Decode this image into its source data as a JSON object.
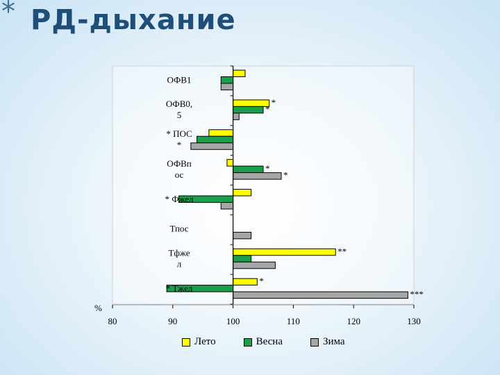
{
  "slide": {
    "marker": "*",
    "title": "РД-дыхание"
  },
  "chart_data": {
    "type": "bar",
    "orientation": "horizontal",
    "categories": [
      "ОФВ1",
      "ОФВ0,\n5",
      "* ПОС\n*",
      "ОФВп\nос",
      "* Фжел",
      "Тпос",
      "Тфже\nл",
      "* Тжел"
    ],
    "series": [
      {
        "name": "Лето",
        "color": "#ffff00",
        "values": [
          102,
          106,
          96,
          99,
          103,
          null,
          117,
          104
        ]
      },
      {
        "name": "Весна",
        "color": "#1aa04a",
        "values": [
          98,
          105,
          94,
          105,
          91,
          null,
          103,
          89
        ]
      },
      {
        "name": "Зима",
        "color": "#a6a6a6",
        "values": [
          98,
          101,
          93,
          108,
          98,
          103,
          107,
          129
        ]
      }
    ],
    "annotations": [
      {
        "category": 1,
        "series": 0,
        "text": "*"
      },
      {
        "category": 1,
        "series": 1,
        "text": "*"
      },
      {
        "category": 3,
        "series": 1,
        "text": "*"
      },
      {
        "category": 3,
        "series": 2,
        "text": "*"
      },
      {
        "category": 6,
        "series": 0,
        "text": "**"
      },
      {
        "category": 7,
        "series": 0,
        "text": "*"
      },
      {
        "category": 7,
        "series": 2,
        "text": "***"
      }
    ],
    "xlim": [
      80,
      130
    ],
    "xticks": [
      "80",
      "90",
      "100",
      "110",
      "120",
      "130"
    ],
    "base": 100,
    "xlabel": "%",
    "legend_position": "bottom"
  }
}
